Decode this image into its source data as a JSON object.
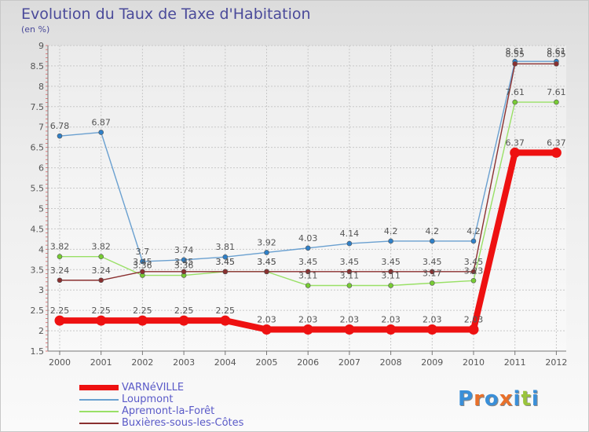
{
  "title": "Evolution du Taux de Taxe d'Habitation",
  "subtitle": "(en %)",
  "brand": {
    "letters": [
      "P",
      "r",
      "o",
      "x",
      "i",
      "t",
      "i"
    ],
    "colors": [
      "#3a8fd8",
      "#e8702a",
      "#3a8fd8",
      "#e8702a",
      "#3a8fd8",
      "#9ac43c",
      "#3a8fd8"
    ]
  },
  "chart_data": {
    "type": "line",
    "x": [
      "2000",
      "2001",
      "2002",
      "2003",
      "2004",
      "2005",
      "2006",
      "2007",
      "2008",
      "2009",
      "2010",
      "2011",
      "2012"
    ],
    "ylim": [
      1.5,
      9
    ],
    "yticks": [
      "1.5",
      "2",
      "2.5",
      "3",
      "3.5",
      "4",
      "4.5",
      "5",
      "5.5",
      "6",
      "6.5",
      "7",
      "7.5",
      "8",
      "8.5",
      "9"
    ],
    "grid": true,
    "legend_position": "bottom-left",
    "series": [
      {
        "name": "VARNéVILLE",
        "color": "#ee1111",
        "dot": "#ee1111",
        "values": [
          2.25,
          2.25,
          2.25,
          2.25,
          2.25,
          2.03,
          2.03,
          2.03,
          2.03,
          2.03,
          2.03,
          6.37,
          6.37
        ],
        "labels": [
          "2.25",
          "2.25",
          "2.25",
          "2.25",
          "2.25",
          "2.03",
          "2.03",
          "2.03",
          "2.03",
          "2.03",
          "2.03",
          "6.37",
          "6.37"
        ]
      },
      {
        "name": "Loupmont",
        "color": "#6aa0d0",
        "dot": "#2f80c8",
        "values": [
          6.78,
          6.87,
          3.7,
          3.74,
          3.81,
          3.92,
          4.03,
          4.14,
          4.2,
          4.2,
          4.2,
          8.61,
          8.61
        ],
        "labels": [
          "6.78",
          "6.87",
          "3.7",
          "3.74",
          "3.81",
          "3.92",
          "4.03",
          "4.14",
          "4.2",
          "4.2",
          "4.2",
          "8.61",
          "8.61"
        ]
      },
      {
        "name": "Apremont-la-Forêt",
        "color": "#99e066",
        "dot": "#77cc33",
        "values": [
          3.82,
          3.82,
          3.36,
          3.36,
          3.45,
          3.45,
          3.11,
          3.11,
          3.11,
          3.17,
          3.23,
          7.61,
          7.61
        ],
        "labels": [
          "3.82",
          "3.82",
          "3.36",
          "3.36",
          "3.45",
          "3.45",
          "3.11",
          "3.11",
          "3.11",
          "3.17",
          "3.23",
          "7.61",
          "7.61"
        ]
      },
      {
        "name": "Buxières-sous-les-Côtes",
        "color": "#8a3030",
        "dot": "#8a3030",
        "values": [
          3.24,
          3.24,
          3.45,
          3.45,
          3.45,
          3.45,
          3.45,
          3.45,
          3.45,
          3.45,
          3.45,
          8.55,
          8.55
        ],
        "labels": [
          "3.24",
          "3.24",
          "3.45",
          "3.45",
          "3.45",
          "3.45",
          "3.45",
          "3.45",
          "3.45",
          "3.45",
          "3.45",
          "8.55",
          "8.55"
        ]
      }
    ]
  }
}
